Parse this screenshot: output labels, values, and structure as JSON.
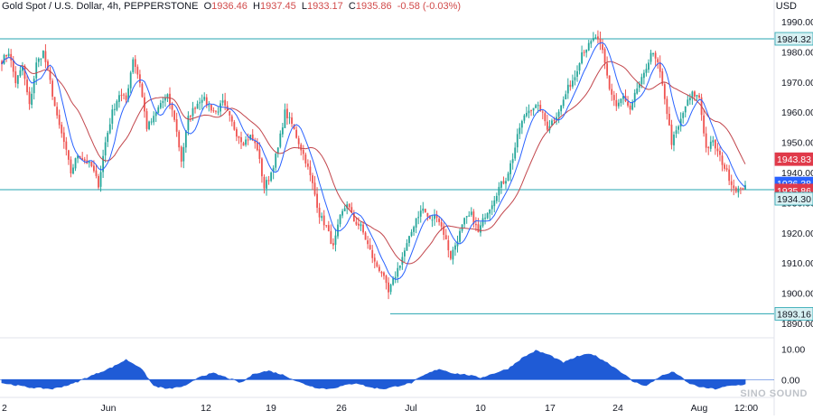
{
  "header": {
    "symbol": "Gold Spot / U.S. Dollar, 4h, PEPPERSTONE",
    "o_label": "O",
    "o_value": "1936.46",
    "h_label": "H",
    "h_value": "1937.45",
    "l_label": "L",
    "l_value": "1933.17",
    "c_label": "C",
    "c_value": "1935.86",
    "change": "-0.58 (-0.03%)"
  },
  "currency": "USD",
  "watermark": "SINO SOUND",
  "colors": {
    "up": "#26a69a",
    "down": "#ef5350",
    "ma_fast": "#2962ff",
    "ma_slow": "#c2464c",
    "hline": "#26a5b0",
    "osc": "#1f5bd6",
    "tag_red": "#e03a4a",
    "tag_blue": "#2962ff"
  },
  "chart_data": {
    "type": "candlestick",
    "ylim": [
      1887,
      1993
    ],
    "y_ticks": [
      "1990.00",
      "1980.00",
      "1970.00",
      "1960.00",
      "1950.00",
      "1940.00",
      "1930.00",
      "1920.00",
      "1910.00",
      "1900.00",
      "1890.00"
    ],
    "y_tick_values": [
      1990,
      1980,
      1970,
      1960,
      1950,
      1940,
      1930,
      1920,
      1910,
      1900,
      1890
    ],
    "x_labels": [
      "2",
      "Jun",
      "12",
      "19",
      "26",
      "Jul",
      "10",
      "17",
      "24",
      "Aug",
      "12:00"
    ],
    "price_tags": [
      {
        "value": 1984.32,
        "text": "1984.32",
        "style": "line"
      },
      {
        "value": 1943.83,
        "text": "1943.83",
        "style": "red"
      },
      {
        "value": 1936.38,
        "text": "1936.38",
        "style": "blue"
      },
      {
        "value": 1935.86,
        "text": "1935.86",
        "style": "red"
      },
      {
        "value": 1934.3,
        "text": "1934.30",
        "style": "line"
      },
      {
        "value": 1893.16,
        "text": "1893.16",
        "style": "line"
      }
    ],
    "horizontal_lines": [
      1984.32,
      1934.3,
      1893.16
    ],
    "anchors": [
      [
        0,
        1977
      ],
      [
        3,
        1980
      ],
      [
        6,
        1970
      ],
      [
        9,
        1975
      ],
      [
        12,
        1962
      ],
      [
        15,
        1976
      ],
      [
        18,
        1980
      ],
      [
        21,
        1970
      ],
      [
        24,
        1958
      ],
      [
        27,
        1950
      ],
      [
        30,
        1940
      ],
      [
        33,
        1946
      ],
      [
        36,
        1944
      ],
      [
        39,
        1942
      ],
      [
        42,
        1936
      ],
      [
        45,
        1950
      ],
      [
        48,
        1960
      ],
      [
        51,
        1966
      ],
      [
        54,
        1964
      ],
      [
        57,
        1978
      ],
      [
        60,
        1970
      ],
      [
        63,
        1955
      ],
      [
        66,
        1958
      ],
      [
        69,
        1963
      ],
      [
        72,
        1965
      ],
      [
        75,
        1958
      ],
      [
        78,
        1944
      ],
      [
        81,
        1958
      ],
      [
        84,
        1962
      ],
      [
        87,
        1965
      ],
      [
        90,
        1962
      ],
      [
        93,
        1960
      ],
      [
        96,
        1963
      ],
      [
        99,
        1958
      ],
      [
        102,
        1953
      ],
      [
        105,
        1950
      ],
      [
        108,
        1952
      ],
      [
        111,
        1948
      ],
      [
        114,
        1935
      ],
      [
        117,
        1940
      ],
      [
        120,
        1948
      ],
      [
        123,
        1960
      ],
      [
        126,
        1956
      ],
      [
        129,
        1950
      ],
      [
        132,
        1944
      ],
      [
        135,
        1936
      ],
      [
        138,
        1926
      ],
      [
        141,
        1922
      ],
      [
        144,
        1915
      ],
      [
        147,
        1925
      ],
      [
        150,
        1930
      ],
      [
        153,
        1924
      ],
      [
        156,
        1922
      ],
      [
        159,
        1916
      ],
      [
        162,
        1910
      ],
      [
        165,
        1907
      ],
      [
        168,
        1900
      ],
      [
        171,
        1906
      ],
      [
        174,
        1912
      ],
      [
        177,
        1918
      ],
      [
        180,
        1925
      ],
      [
        183,
        1928
      ],
      [
        186,
        1924
      ],
      [
        189,
        1926
      ],
      [
        192,
        1920
      ],
      [
        195,
        1912
      ],
      [
        198,
        1918
      ],
      [
        201,
        1924
      ],
      [
        204,
        1926
      ],
      [
        207,
        1920
      ],
      [
        210,
        1926
      ],
      [
        213,
        1930
      ],
      [
        216,
        1935
      ],
      [
        219,
        1938
      ],
      [
        222,
        1945
      ],
      [
        225,
        1955
      ],
      [
        228,
        1960
      ],
      [
        231,
        1962
      ],
      [
        234,
        1961
      ],
      [
        237,
        1955
      ],
      [
        240,
        1958
      ],
      [
        243,
        1962
      ],
      [
        246,
        1968
      ],
      [
        249,
        1972
      ],
      [
        252,
        1980
      ],
      [
        255,
        1982
      ],
      [
        258,
        1985
      ],
      [
        261,
        1980
      ],
      [
        264,
        1968
      ],
      [
        267,
        1962
      ],
      [
        270,
        1965
      ],
      [
        273,
        1960
      ],
      [
        276,
        1968
      ],
      [
        279,
        1972
      ],
      [
        282,
        1980
      ],
      [
        285,
        1976
      ],
      [
        288,
        1965
      ],
      [
        291,
        1950
      ],
      [
        294,
        1955
      ],
      [
        297,
        1962
      ],
      [
        300,
        1966
      ],
      [
        303,
        1965
      ],
      [
        306,
        1948
      ],
      [
        309,
        1950
      ],
      [
        312,
        1945
      ],
      [
        315,
        1940
      ],
      [
        318,
        1935
      ],
      [
        321,
        1934
      ],
      [
        323,
        1935.86
      ]
    ],
    "oscillator": {
      "ylim": [
        -3.5,
        12
      ],
      "ticks": [
        "10.00",
        "0.00"
      ],
      "tick_values": [
        10,
        0
      ],
      "anchors": [
        [
          0,
          -1
        ],
        [
          12,
          -2.5
        ],
        [
          22,
          -3
        ],
        [
          30,
          -1.5
        ],
        [
          40,
          1.5
        ],
        [
          48,
          4
        ],
        [
          54,
          6.5
        ],
        [
          60,
          4
        ],
        [
          66,
          -2
        ],
        [
          72,
          -3
        ],
        [
          80,
          -2
        ],
        [
          86,
          1
        ],
        [
          92,
          2
        ],
        [
          98,
          0.5
        ],
        [
          104,
          -1
        ],
        [
          110,
          2
        ],
        [
          116,
          2.8
        ],
        [
          122,
          1.5
        ],
        [
          130,
          -1
        ],
        [
          136,
          -2.5
        ],
        [
          142,
          -3
        ],
        [
          148,
          -2
        ],
        [
          154,
          -1
        ],
        [
          160,
          -2.5
        ],
        [
          166,
          -3
        ],
        [
          172,
          -2
        ],
        [
          178,
          -1
        ],
        [
          184,
          1.5
        ],
        [
          190,
          3.5
        ],
        [
          196,
          2
        ],
        [
          202,
          1.5
        ],
        [
          208,
          0.5
        ],
        [
          214,
          2
        ],
        [
          220,
          3.5
        ],
        [
          226,
          7
        ],
        [
          232,
          9.5
        ],
        [
          238,
          8
        ],
        [
          244,
          5.5
        ],
        [
          250,
          7.5
        ],
        [
          256,
          8.5
        ],
        [
          262,
          6
        ],
        [
          268,
          3
        ],
        [
          274,
          -0.5
        ],
        [
          280,
          -2
        ],
        [
          286,
          1
        ],
        [
          292,
          2.5
        ],
        [
          298,
          -1
        ],
        [
          304,
          -2.5
        ],
        [
          310,
          -3
        ],
        [
          316,
          -2
        ],
        [
          323,
          -1.5
        ]
      ]
    }
  }
}
